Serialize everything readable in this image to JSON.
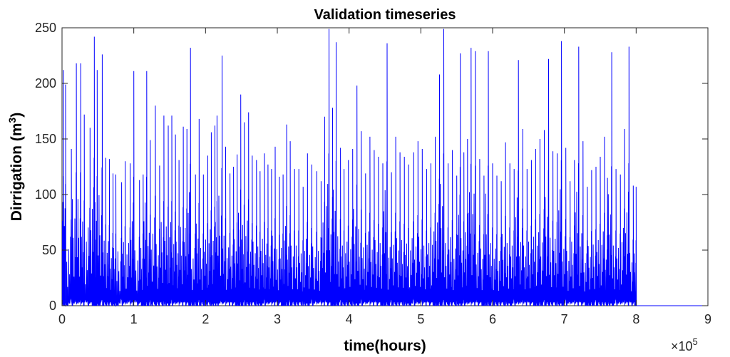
{
  "chart_data": {
    "type": "line",
    "title": "Validation timeseries",
    "xlabel": "time(hours)",
    "ylabel_main": "Dirrigation (m",
    "ylabel_sup": "3",
    "ylabel_close": ")",
    "x_exponent_base": "×10",
    "x_exponent_power": "5",
    "xlim": [
      0,
      9
    ],
    "ylim": [
      0,
      250
    ],
    "xticks": [
      "0",
      "1",
      "2",
      "3",
      "4",
      "5",
      "6",
      "7",
      "8",
      "9"
    ],
    "yticks": [
      "0",
      "50",
      "100",
      "150",
      "200",
      "250"
    ],
    "grid": false,
    "series": [
      {
        "color": "#0000ff",
        "x_units": "x 10^5 hours",
        "x": [
          0.02,
          0.05,
          0.13,
          0.2,
          0.26,
          0.31,
          0.39,
          0.45,
          0.49,
          0.56,
          0.61,
          0.66,
          0.71,
          0.75,
          0.83,
          0.88,
          0.95,
          1.0,
          1.08,
          1.13,
          1.18,
          1.23,
          1.3,
          1.36,
          1.42,
          1.48,
          1.53,
          1.58,
          1.63,
          1.69,
          1.74,
          1.79,
          1.86,
          1.91,
          1.97,
          2.03,
          2.08,
          2.13,
          2.16,
          2.23,
          2.28,
          2.34,
          2.39,
          2.44,
          2.49,
          2.54,
          2.6,
          2.65,
          2.71,
          2.76,
          2.82,
          2.87,
          2.92,
          2.97,
          3.03,
          3.08,
          3.13,
          3.18,
          3.24,
          3.3,
          3.36,
          3.42,
          3.48,
          3.55,
          3.61,
          3.66,
          3.72,
          3.77,
          3.82,
          3.88,
          3.93,
          3.99,
          4.05,
          4.11,
          4.17,
          4.23,
          4.29,
          4.35,
          4.41,
          4.47,
          4.53,
          4.59,
          4.65,
          4.71,
          4.77,
          4.83,
          4.9,
          4.96,
          5.02,
          5.08,
          5.14,
          5.2,
          5.26,
          5.32,
          5.38,
          5.44,
          5.5,
          5.55,
          5.6,
          5.65,
          5.7,
          5.76,
          5.82,
          5.88,
          5.94,
          6.0,
          6.06,
          6.12,
          6.18,
          6.24,
          6.3,
          6.36,
          6.42,
          6.48,
          6.54,
          6.6,
          6.66,
          6.72,
          6.78,
          6.84,
          6.9,
          6.96,
          7.02,
          7.08,
          7.14,
          7.2,
          7.26,
          7.32,
          7.38,
          7.44,
          7.5,
          7.56,
          7.6,
          7.66,
          7.72,
          7.78,
          7.84,
          7.9,
          7.96,
          8.0
        ],
        "y": [
          212,
          199,
          141,
          218,
          218,
          172,
          160,
          242,
          212,
          226,
          133,
          132,
          119,
          118,
          111,
          130,
          128,
          211,
          113,
          118,
          211,
          149,
          180,
          126,
          171,
          162,
          171,
          154,
          131,
          161,
          159,
          232,
          118,
          168,
          118,
          135,
          156,
          162,
          171,
          225,
          143,
          119,
          125,
          136,
          190,
          165,
          174,
          135,
          131,
          121,
          137,
          127,
          123,
          143,
          116,
          118,
          163,
          148,
          123,
          123,
          107,
          137,
          127,
          121,
          112,
          170,
          249,
          178,
          237,
          142,
          123,
          131,
          141,
          198,
          157,
          119,
          152,
          140,
          134,
          128,
          236,
          120,
          152,
          138,
          134,
          127,
          138,
          148,
          141,
          123,
          128,
          152,
          208,
          249,
          128,
          140,
          117,
          227,
          138,
          150,
          232,
          229,
          132,
          117,
          229,
          128,
          117,
          112,
          147,
          128,
          123,
          221,
          159,
          123,
          131,
          141,
          150,
          158,
          222,
          139,
          137,
          238,
          142,
          112,
          131,
          233,
          148,
          107,
          122,
          125,
          134,
          152,
          115,
          228,
          123,
          118,
          159,
          233,
          108,
          107
        ],
        "trough_y": [
          0,
          3,
          5,
          1,
          0,
          4,
          2,
          6,
          3,
          5,
          0,
          2
        ],
        "note": "peaks approximated; trace returns to near-zero between peaks; data ends ~8.05e5 hours"
      }
    ]
  }
}
